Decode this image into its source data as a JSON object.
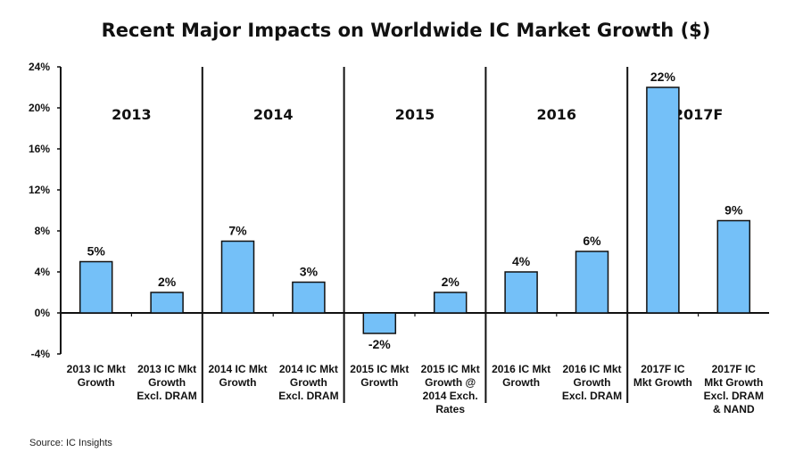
{
  "chart_data": {
    "type": "bar",
    "title": "Recent Major Impacts on Worldwide IC Market Growth ($)",
    "xlabel": "",
    "ylabel": "",
    "ylim": [
      -4,
      24
    ],
    "yticks": [
      24,
      20,
      16,
      12,
      8,
      4,
      0,
      -4
    ],
    "ytick_labels": [
      "24%",
      "20%",
      "16%",
      "12%",
      "8%",
      "4%",
      "0%",
      "-4%"
    ],
    "grid": false,
    "legend": "none",
    "bar_color": "#74c0f8",
    "bar_edge_color": "#111111",
    "groups": [
      {
        "label": "2013",
        "bars": [
          0,
          1
        ]
      },
      {
        "label": "2014",
        "bars": [
          2,
          3
        ]
      },
      {
        "label": "2015",
        "bars": [
          4,
          5
        ]
      },
      {
        "label": "2016",
        "bars": [
          6,
          7
        ]
      },
      {
        "label": "2017F",
        "bars": [
          8,
          9
        ]
      }
    ],
    "categories": [
      [
        "2013 IC Mkt",
        "Growth"
      ],
      [
        "2013 IC Mkt",
        "Growth",
        "Excl. DRAM"
      ],
      [
        "2014 IC Mkt",
        "Growth"
      ],
      [
        "2014 IC Mkt",
        "Growth",
        "Excl. DRAM"
      ],
      [
        "2015 IC Mkt",
        "Growth"
      ],
      [
        "2015 IC Mkt",
        "Growth @",
        "2014 Exch.",
        "Rates"
      ],
      [
        "2016 IC Mkt",
        "Growth"
      ],
      [
        "2016 IC Mkt",
        "Growth",
        "Excl. DRAM"
      ],
      [
        "2017F IC",
        "Mkt Growth"
      ],
      [
        "2017F IC",
        "Mkt Growth",
        "Excl. DRAM",
        "& NAND"
      ]
    ],
    "values": [
      5,
      2,
      7,
      3,
      -2,
      2,
      4,
      6,
      22,
      9
    ],
    "data_labels": [
      "5%",
      "2%",
      "7%",
      "3%",
      "-2%",
      "2%",
      "4%",
      "6%",
      "22%",
      "9%"
    ]
  },
  "source": "Source: IC Insights"
}
